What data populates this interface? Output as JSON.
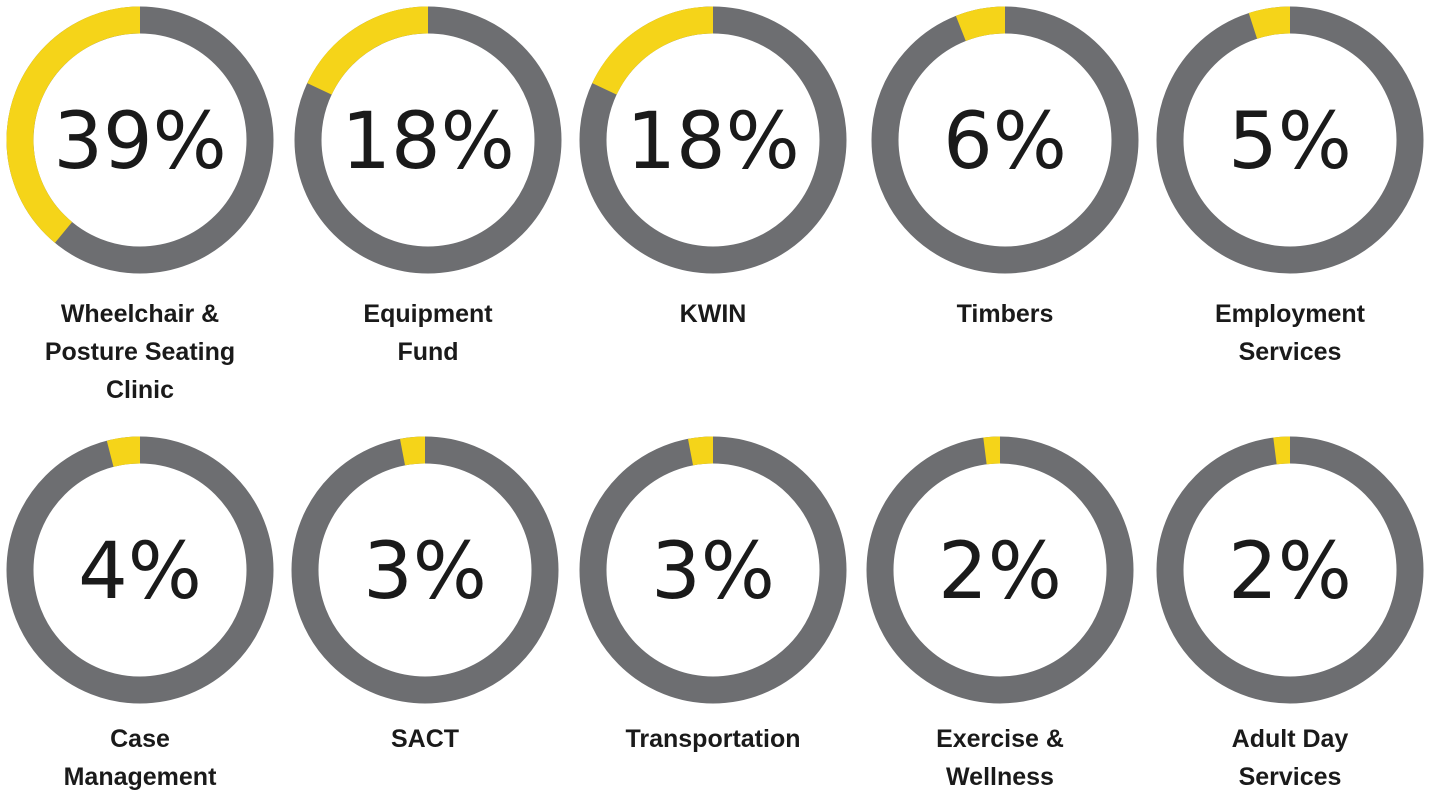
{
  "chart_data": [
    {
      "type": "donut",
      "categories": [
        "Wheelchair & Posture Seating Clinic"
      ],
      "values": [
        39
      ],
      "value_labels": [
        "39%"
      ],
      "color": "#f5d419",
      "ring_color": "#6d6e71"
    },
    {
      "type": "donut",
      "categories": [
        "Equipment Fund"
      ],
      "values": [
        18
      ],
      "value_labels": [
        "18%"
      ],
      "color": "#f5d419",
      "ring_color": "#6d6e71"
    },
    {
      "type": "donut",
      "categories": [
        "KWIN"
      ],
      "values": [
        18
      ],
      "value_labels": [
        "18%"
      ],
      "color": "#f5d419",
      "ring_color": "#6d6e71"
    },
    {
      "type": "donut",
      "categories": [
        "Timbers"
      ],
      "values": [
        6
      ],
      "value_labels": [
        "6%"
      ],
      "color": "#f5d419",
      "ring_color": "#6d6e71"
    },
    {
      "type": "donut",
      "categories": [
        "Employment Services"
      ],
      "values": [
        5
      ],
      "value_labels": [
        "5%"
      ],
      "color": "#f5d419",
      "ring_color": "#6d6e71"
    },
    {
      "type": "donut",
      "categories": [
        "Case Management"
      ],
      "values": [
        4
      ],
      "value_labels": [
        "4%"
      ],
      "color": "#f5d419",
      "ring_color": "#6d6e71"
    },
    {
      "type": "donut",
      "categories": [
        "SACT"
      ],
      "values": [
        3
      ],
      "value_labels": [
        "3%"
      ],
      "color": "#f5d419",
      "ring_color": "#6d6e71"
    },
    {
      "type": "donut",
      "categories": [
        "Transportation"
      ],
      "values": [
        3
      ],
      "value_labels": [
        "3%"
      ],
      "color": "#f5d419",
      "ring_color": "#6d6e71"
    },
    {
      "type": "donut",
      "categories": [
        "Exercise & Wellness"
      ],
      "values": [
        2
      ],
      "value_labels": [
        "2%"
      ],
      "color": "#f5d419",
      "ring_color": "#6d6e71"
    },
    {
      "type": "donut",
      "categories": [
        "Adult Day Services"
      ],
      "values": [
        2
      ],
      "value_labels": [
        "2%"
      ],
      "color": "#f5d419",
      "ring_color": "#6d6e71"
    }
  ]
}
